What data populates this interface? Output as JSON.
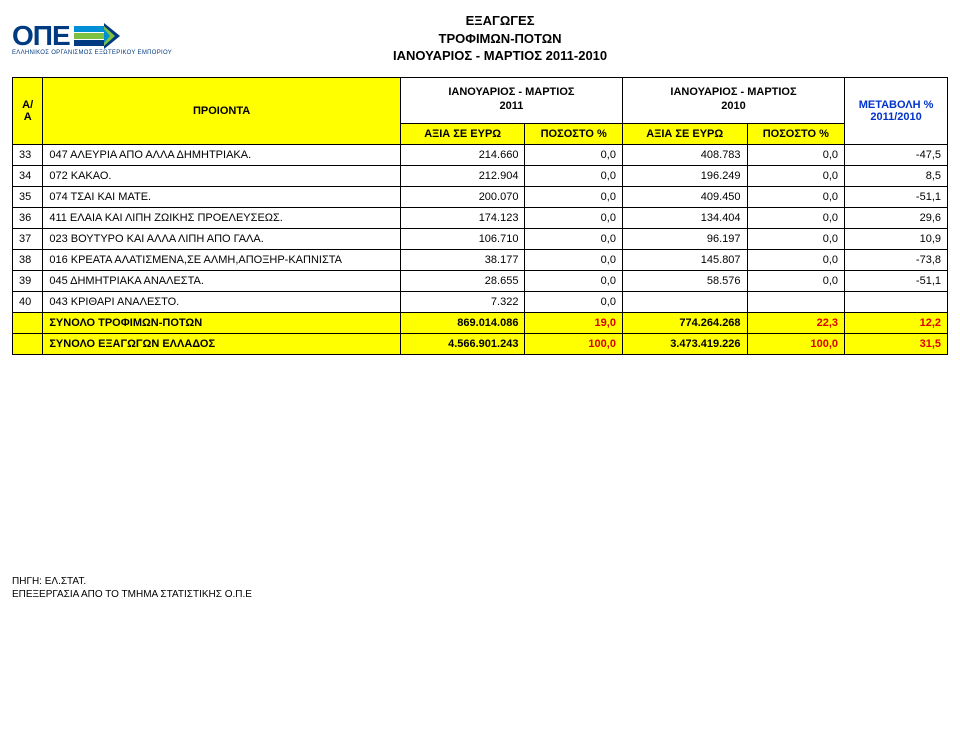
{
  "logo": {
    "text": "ΟΠΕ",
    "subtitle": "ΕΛΛΗΝΙΚΟΣ ΟΡΓΑΝΙΣΜΟΣ ΕΞΩΤΕΡΙΚΟΥ ΕΜΠΟΡΙΟΥ",
    "colors": {
      "text": "#003a80",
      "stripe1": "#008fd5",
      "stripe2": "#7ec142",
      "stripe3": "#003a80"
    }
  },
  "title": {
    "line1": "ΕΞΑΓΩΓΕΣ",
    "line2": "ΤΡΟΦΙΜΩΝ-ΠΟΤΩΝ",
    "line3": "ΙΑΝΟΥΑΡΙΟΣ - ΜΑΡΤΙΟΣ 2011-2010"
  },
  "periods": {
    "p1": {
      "l1": "ΙΑΝΟΥΑΡΙΟΣ - ΜΑΡΤΙΟΣ",
      "l2": "2011"
    },
    "p2": {
      "l1": "ΙΑΝΟΥΑΡΙΟΣ - ΜΑΡΤΙΟΣ",
      "l2": "2010"
    }
  },
  "headers": {
    "aa": "Α/Α",
    "product": "ΠΡΟΙΟΝΤΑ",
    "value": "ΑΞΙΑ ΣΕ ΕΥΡΩ",
    "pct": "ΠΟΣΟΣΤΟ %",
    "change_l1": "ΜΕΤΑΒΟΛΗ %",
    "change_l2": "2011/2010"
  },
  "rows": [
    {
      "aa": "33",
      "prod": "047 ΑΛΕΥΡΙΑ ΑΠΟ ΑΛΛΑ ΔΗΜΗΤΡΙΑΚΑ.",
      "v1": "214.660",
      "p1": "0,0",
      "v2": "408.783",
      "p2": "0,0",
      "chg": "-47,5"
    },
    {
      "aa": "34",
      "prod": "072 ΚΑΚΑΟ.",
      "v1": "212.904",
      "p1": "0,0",
      "v2": "196.249",
      "p2": "0,0",
      "chg": "8,5"
    },
    {
      "aa": "35",
      "prod": "074 ΤΣΑΙ ΚΑΙ ΜΑΤΕ.",
      "v1": "200.070",
      "p1": "0,0",
      "v2": "409.450",
      "p2": "0,0",
      "chg": "-51,1"
    },
    {
      "aa": "36",
      "prod": "411 ΕΛΑΙΑ ΚΑΙ ΛΙΠΗ ΖΩΙΚΗΣ ΠΡΟΕΛΕΥΣΕΩΣ.",
      "v1": "174.123",
      "p1": "0,0",
      "v2": "134.404",
      "p2": "0,0",
      "chg": "29,6"
    },
    {
      "aa": "37",
      "prod": "023 ΒΟΥΤΥΡΟ ΚΑΙ ΑΛΛΑ ΛΙΠΗ ΑΠΟ ΓΑΛΑ.",
      "v1": "106.710",
      "p1": "0,0",
      "v2": "96.197",
      "p2": "0,0",
      "chg": "10,9"
    },
    {
      "aa": "38",
      "prod": "016 ΚΡΕΑΤΑ ΑΛΑΤΙΣΜΕΝΑ,ΣΕ ΑΛΜΗ,ΑΠΟΞΗΡ-ΚΑΠΝΙΣΤΑ",
      "v1": "38.177",
      "p1": "0,0",
      "v2": "145.807",
      "p2": "0,0",
      "chg": "-73,8"
    },
    {
      "aa": "39",
      "prod": "045 ΔΗΜΗΤΡΙΑΚΑ ΑΝΑΛΕΣΤΑ.",
      "v1": "28.655",
      "p1": "0,0",
      "v2": "58.576",
      "p2": "0,0",
      "chg": "-51,1"
    },
    {
      "aa": "40",
      "prod": "043 ΚΡΙΘΑΡΙ ΑΝΑΛΕΣΤΟ.",
      "v1": "7.322",
      "p1": "0,0",
      "v2": "",
      "p2": "",
      "chg": ""
    }
  ],
  "totals": {
    "food": {
      "label": "ΣΥΝΟΛΟ ΤΡΟΦΙΜΩΝ-ΠΟΤΩΝ",
      "v1": "869.014.086",
      "p1": "19,0",
      "v2": "774.264.268",
      "p2": "22,3",
      "chg": "12,2"
    },
    "greece": {
      "label": "ΣΥΝΟΛΟ ΕΞΑΓΩΓΩΝ ΕΛΛΑΔΟΣ",
      "v1": "4.566.901.243",
      "p1": "100,0",
      "v2": "3.473.419.226",
      "p2": "100,0",
      "chg": "31,5"
    }
  },
  "footer": {
    "l1": "ΠΗΓΗ: ΕΛ.ΣΤΑΤ.",
    "l2": "ΕΠΕΞΕΡΓΑΣΙΑ ΑΠΟ ΤΟ ΤΜΗΜΑ ΣΤΑΤΙΣΤΙΚΗΣ Ο.Π.Ε"
  }
}
